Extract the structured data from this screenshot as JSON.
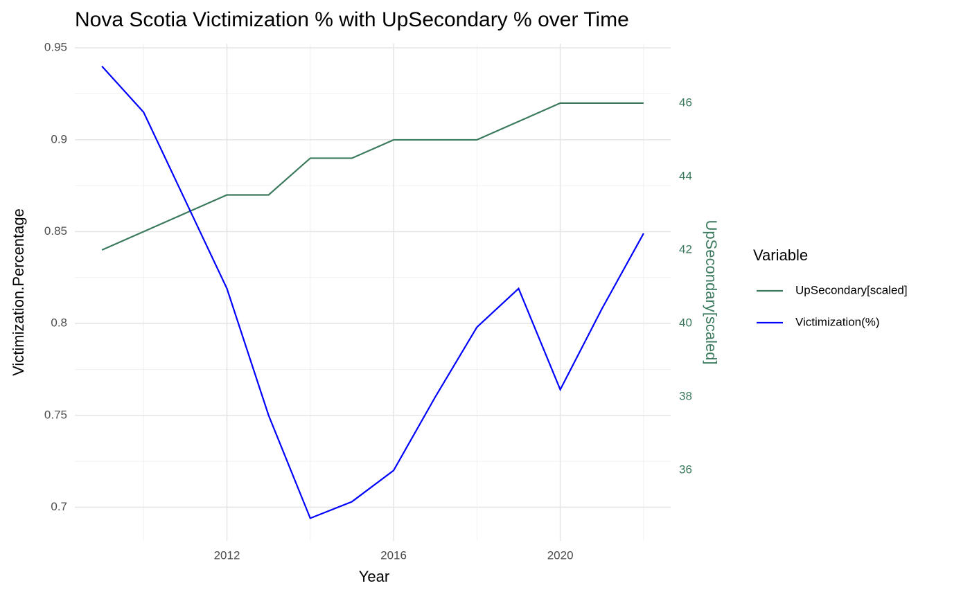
{
  "chart_data": {
    "type": "line",
    "title": "Nova Scotia Victimization % with UpSecondary % over Time",
    "x_label": "Year",
    "y_label": "Victimization.Percentage",
    "y2_label": "UpSecondary[scaled]",
    "legend_title": "Variable",
    "legend_position": "right",
    "grid": true,
    "x": [
      2009,
      2010,
      2011,
      2012,
      2013,
      2014,
      2015,
      2016,
      2017,
      2018,
      2019,
      2020,
      2021,
      2022
    ],
    "xlim": [
      2008.35,
      2022.65
    ],
    "xticks": [
      2012,
      2016,
      2020
    ],
    "xminor": [
      2010,
      2014,
      2018,
      2022
    ],
    "ylim": [
      0.6817,
      0.9523
    ],
    "yticks": [
      0.7,
      0.75,
      0.8,
      0.85,
      0.9,
      0.95
    ],
    "yminor": [
      0.725,
      0.775,
      0.825,
      0.875,
      0.925
    ],
    "y2lim": [
      34.08,
      47.62
    ],
    "y2ticks": [
      36,
      38,
      40,
      42,
      44,
      46
    ],
    "y2_color": "#3b7a5c",
    "series": [
      {
        "name": "UpSecondary[scaled]",
        "color": "#3b7a5c",
        "axis": "y2",
        "values": [
          42,
          42.5,
          43,
          43.5,
          43.5,
          44.5,
          44.5,
          45,
          45,
          45,
          45.5,
          46,
          46,
          46
        ]
      },
      {
        "name": "Victimization(%)",
        "color": "#0000ff",
        "values": [
          0.94,
          0.915,
          0.867,
          0.819,
          0.75,
          0.694,
          0.703,
          0.72,
          0.76,
          0.798,
          0.819,
          0.764,
          0.808,
          0.849
        ]
      }
    ]
  }
}
